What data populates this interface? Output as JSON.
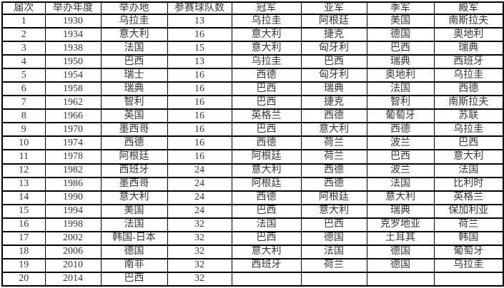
{
  "table": {
    "headers": [
      "届次",
      "举办年度",
      "举办地",
      "参赛球队数",
      "冠军",
      "亚军",
      "季军",
      "殿军"
    ],
    "rows": [
      [
        "1",
        "1930",
        "乌拉圭",
        "13",
        "乌拉圭",
        "阿根廷",
        "美国",
        "南斯拉夫"
      ],
      [
        "2",
        "1934",
        "意大利",
        "16",
        "意大利",
        "捷克",
        "德国",
        "奥地利"
      ],
      [
        "3",
        "1938",
        "法国",
        "15",
        "意大利",
        "匈牙利",
        "巴西",
        "瑞典"
      ],
      [
        "4",
        "1950",
        "巴西",
        "13",
        "乌拉圭",
        "巴西",
        "瑞典",
        "西班牙"
      ],
      [
        "5",
        "1954",
        "瑞士",
        "16",
        "西德",
        "匈牙利",
        "奥地利",
        "乌拉圭"
      ],
      [
        "6",
        "1958",
        "瑞典",
        "16",
        "巴西",
        "瑞典",
        "法国",
        "西德"
      ],
      [
        "7",
        "1962",
        "智利",
        "16",
        "巴西",
        "捷克",
        "智利",
        "南斯拉夫"
      ],
      [
        "8",
        "1966",
        "英国",
        "16",
        "英格兰",
        "西德",
        "葡萄牙",
        "苏联"
      ],
      [
        "9",
        "1970",
        "墨西哥",
        "16",
        "巴西",
        "意大利",
        "西德",
        "乌拉圭"
      ],
      [
        "10",
        "1974",
        "西德",
        "16",
        "西德",
        "荷兰",
        "波兰",
        "巴西"
      ],
      [
        "11",
        "1978",
        "阿根廷",
        "16",
        "阿根廷",
        "荷兰",
        "巴西",
        "意大利"
      ],
      [
        "12",
        "1982",
        "西班牙",
        "24",
        "意大利",
        "西德",
        "波兰",
        "法国"
      ],
      [
        "13",
        "1986",
        "墨西哥",
        "24",
        "阿根廷",
        "西德",
        "法国",
        "比利时"
      ],
      [
        "14",
        "1990",
        "意大利",
        "24",
        "西德",
        "阿根廷",
        "意大利",
        "英格兰"
      ],
      [
        "15",
        "1994",
        "美国",
        "24",
        "巴西",
        "意大利",
        "瑞典",
        "保加利亚"
      ],
      [
        "16",
        "1998",
        "法国",
        "32",
        "法国",
        "巴西",
        "克罗地亚",
        "荷兰"
      ],
      [
        "17",
        "2002",
        "韩国-日本",
        "32",
        "巴西",
        "德国",
        "土耳其",
        "韩国"
      ],
      [
        "18",
        "2006",
        "德国",
        "32",
        "意大利",
        "法国",
        "德国",
        "葡萄牙"
      ],
      [
        "19",
        "2010",
        "南非",
        "32",
        "西班牙",
        "荷兰",
        "德国",
        "乌拉圭"
      ],
      [
        "20",
        "2014",
        "巴西",
        "32",
        "",
        "",
        "",
        ""
      ]
    ]
  }
}
